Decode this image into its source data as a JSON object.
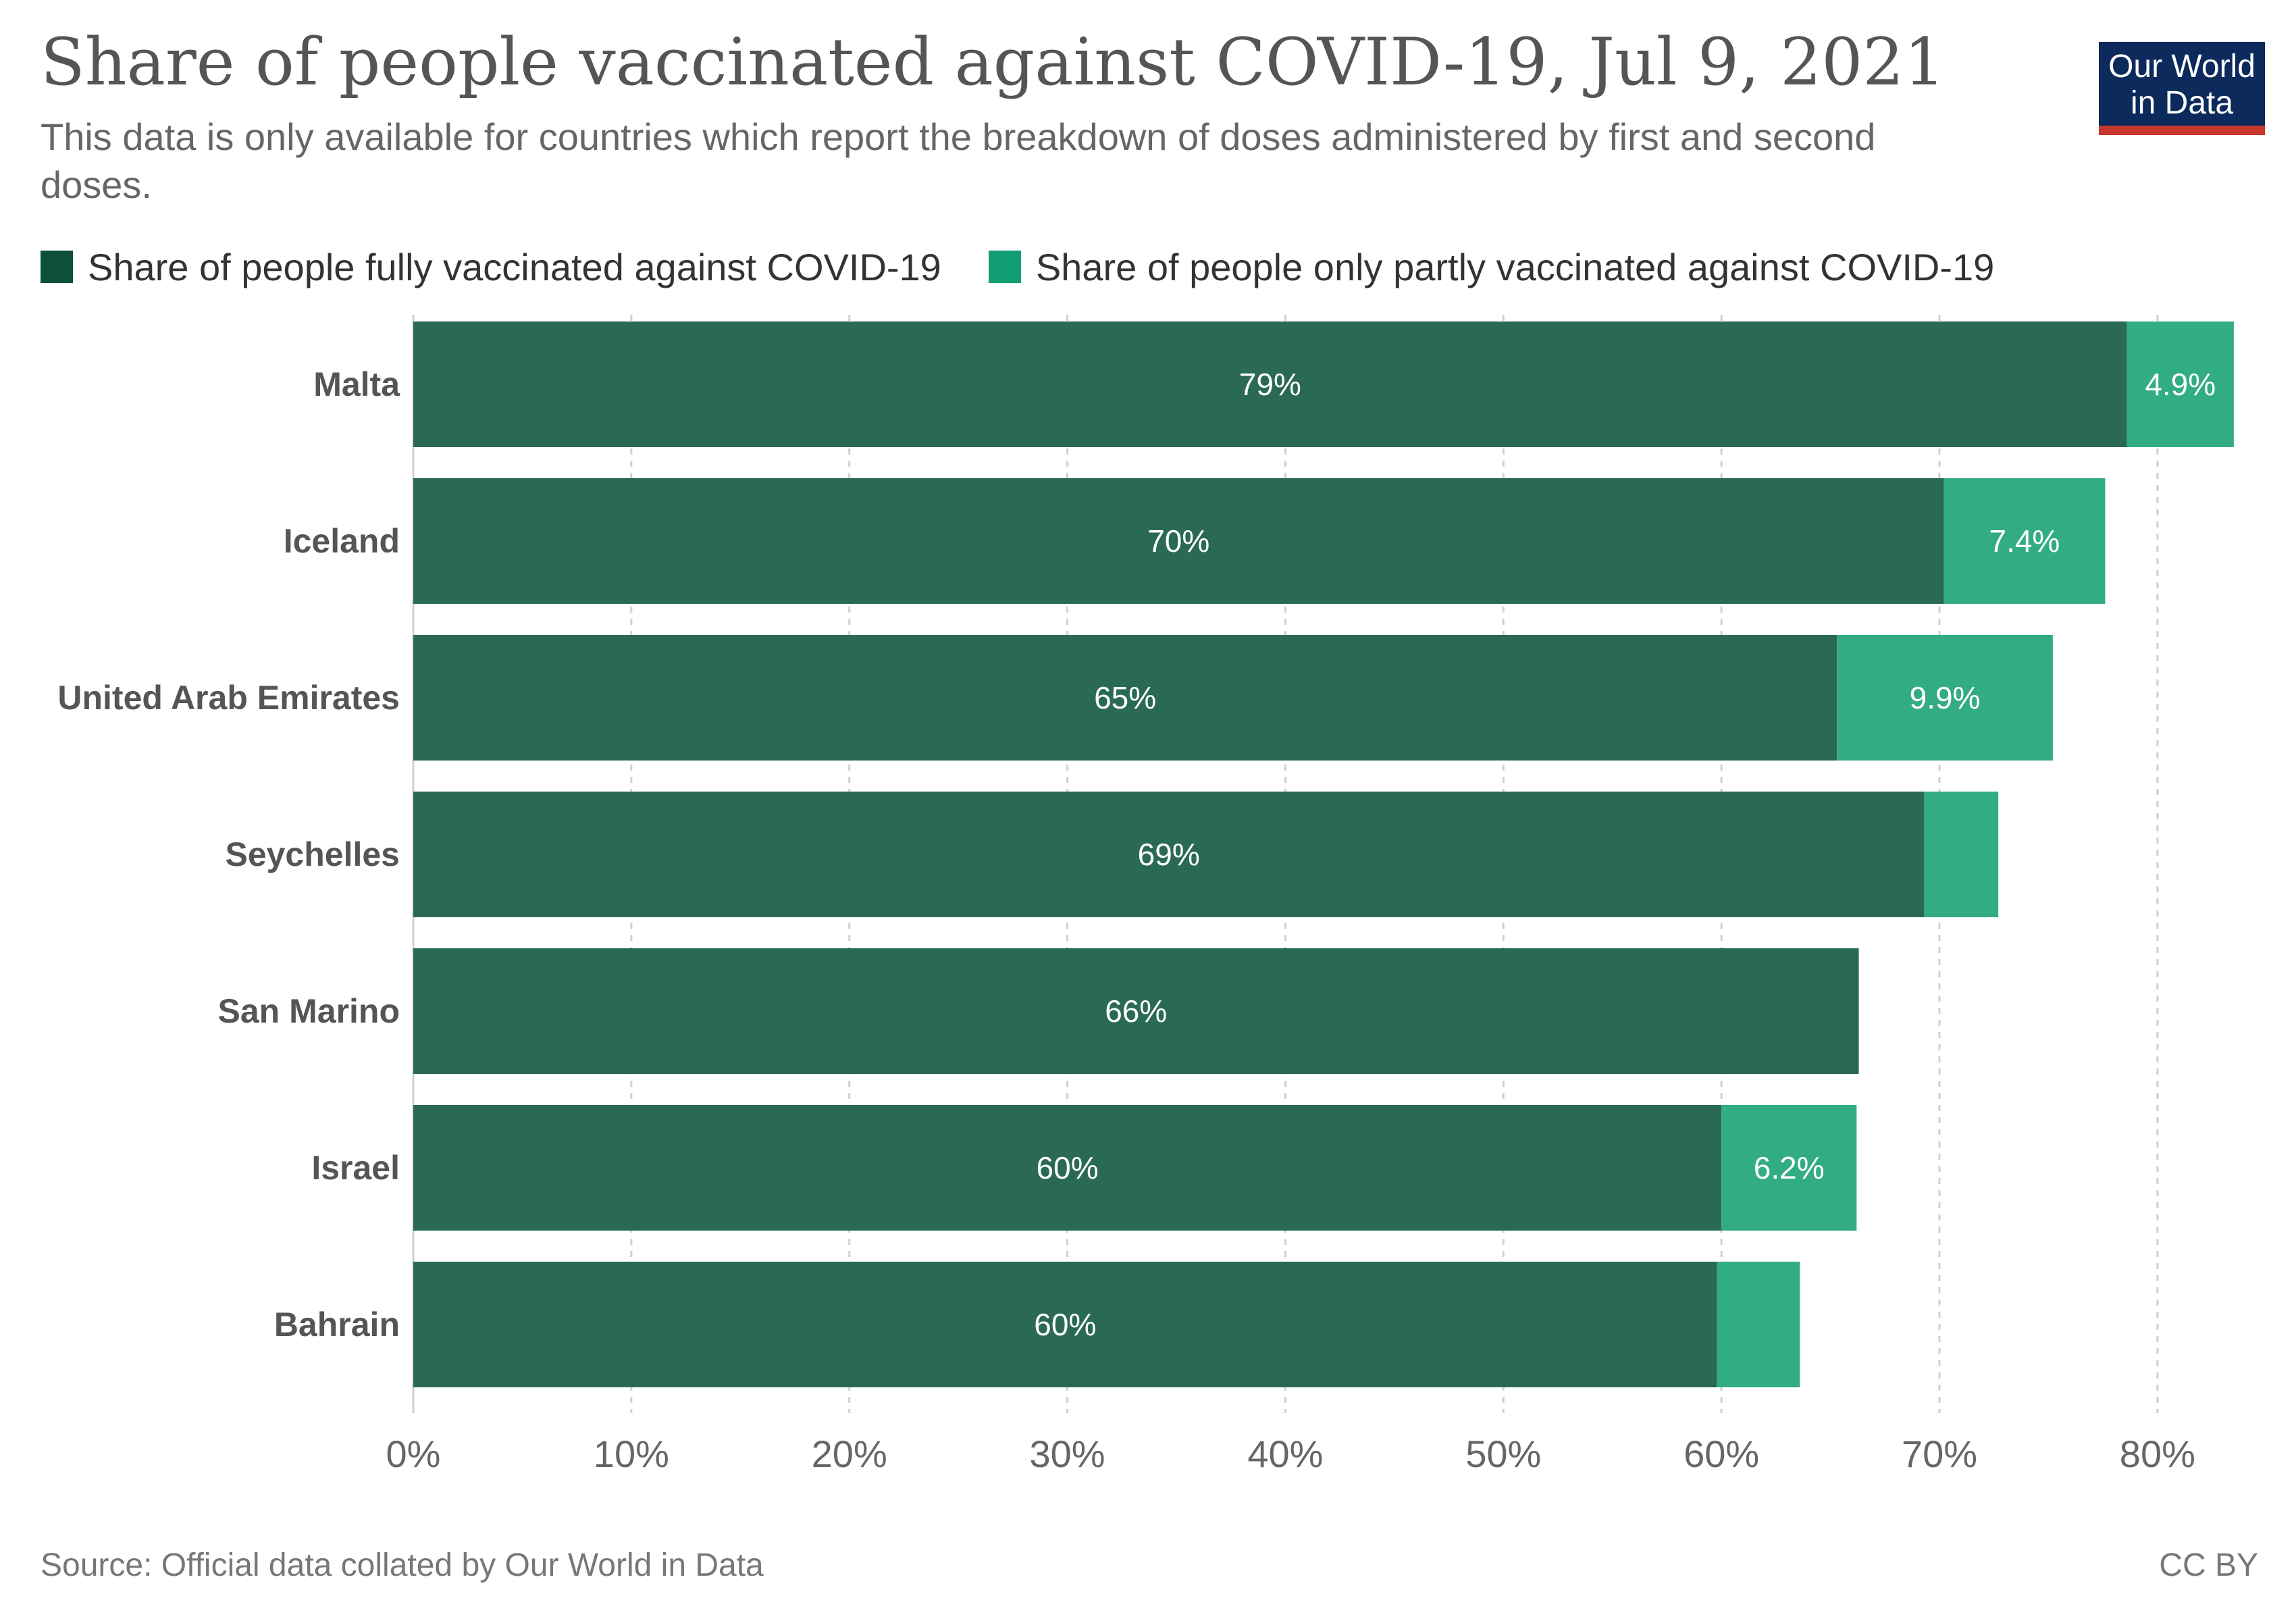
{
  "header": {
    "title": "Share of people vaccinated against COVID-19, Jul 9, 2021",
    "subtitle": "This data is only available for countries which report the breakdown of doses administered by first and second doses.",
    "logo_line1": "Our World",
    "logo_line2": "in Data"
  },
  "footer": {
    "source": "Source: Official data collated by Our World in Data",
    "license": "CC BY"
  },
  "colors": {
    "fully": "#2a6a52",
    "partly": "#32ac85",
    "legend_fully": "#0e4f3c",
    "legend_partly": "#139d75",
    "logo_bg": "#0c2a5b",
    "logo_bar": "#c8362d"
  },
  "chart_data": {
    "type": "bar",
    "orientation": "horizontal",
    "stacked": true,
    "categories": [
      "Malta",
      "Iceland",
      "United Arab Emirates",
      "Seychelles",
      "San Marino",
      "Israel",
      "Bahrain"
    ],
    "series": [
      {
        "name": "Share of people fully vaccinated against COVID-19",
        "values": [
          78.6,
          70.2,
          65.3,
          69.3,
          66.3,
          60.0,
          59.8
        ],
        "labels": [
          "79%",
          "70%",
          "65%",
          "69%",
          "66%",
          "60%",
          "60%"
        ]
      },
      {
        "name": "Share of people only partly vaccinated against COVID-19",
        "values": [
          4.9,
          7.4,
          9.9,
          3.4,
          0,
          6.2,
          3.8
        ],
        "labels": [
          "4.9%",
          "7.4%",
          "9.9%",
          "",
          "",
          "6.2%",
          ""
        ]
      }
    ],
    "xlim": [
      0,
      84
    ],
    "xticks": [
      0,
      10,
      20,
      30,
      40,
      50,
      60,
      70,
      80
    ],
    "xtick_labels": [
      "0%",
      "10%",
      "20%",
      "30%",
      "40%",
      "50%",
      "60%",
      "70%",
      "80%"
    ],
    "grid": "vertical dashed",
    "legend_position": "top-left"
  }
}
